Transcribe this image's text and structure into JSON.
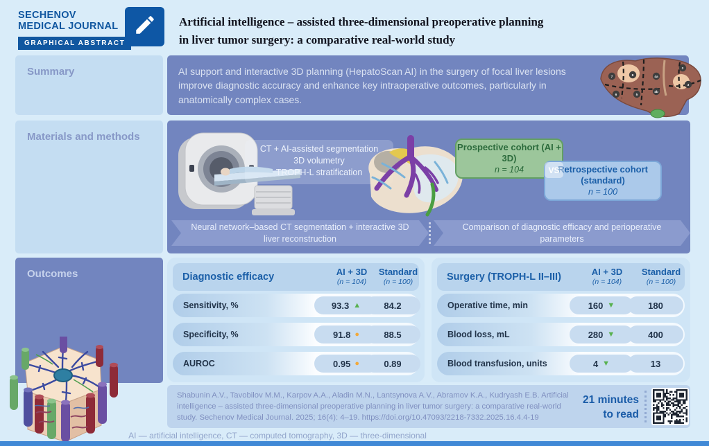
{
  "header": {
    "journal_name_line1": "SECHENOV",
    "journal_name_line2": "MEDICAL JOURNAL",
    "badge_label": "GRAPHICAL ABSTRACT",
    "title_line1": "Artificial intelligence – assisted three-dimensional preoperative planning",
    "title_line2": "in liver tumor surgery: a comparative real-world study"
  },
  "sections": {
    "summary": {
      "label": "Summary",
      "text": "AI support and interactive 3D planning (HepatoScan AI) in the surgery of focal liver lesions improve diagnostic accuracy and enhance key intraoperative outcomes, particularly in anatomically complex cases."
    },
    "methods": {
      "label": "Materials and methods",
      "workflow_note_lines": [
        "CT + AI-assisted segmentation",
        "3D volumetry",
        "TROPH-L stratification"
      ],
      "prospective_cohort": {
        "name": "Prospective cohort (AI + 3D)",
        "n": "n = 104"
      },
      "vs_label": "VS",
      "retrospective_cohort": {
        "name": "Retrospective cohort (standard)",
        "n": "n = 100"
      },
      "arrow_left": "Neural network–based CT segmentation + interactive 3D liver reconstruction",
      "arrow_right": "Comparison of diagnostic efficacy and perioperative parameters"
    },
    "outcomes": {
      "label": "Outcomes",
      "columns": {
        "ai": "AI + 3D",
        "ai_n": "(n = 104)",
        "standard": "Standard",
        "standard_n": "(n = 100)"
      },
      "tables": [
        {
          "title": "Diagnostic efficacy",
          "rows": [
            {
              "label": "Sensitivity, %",
              "ai_value": "93.3",
              "trend_glyph": "▲",
              "trend_color": "#58b14f",
              "standard_value": "84.2"
            },
            {
              "label": "Specificity, %",
              "ai_value": "91.8",
              "trend_glyph": "●",
              "trend_color": "#f2a93b",
              "standard_value": "88.5"
            },
            {
              "label": "AUROC",
              "ai_value": "0.95",
              "trend_glyph": "●",
              "trend_color": "#f2a93b",
              "standard_value": "0.89"
            }
          ]
        },
        {
          "title": "Surgery (TROPH-L II–III)",
          "rows": [
            {
              "label": "Operative time, min",
              "ai_value": "160",
              "trend_glyph": "▼",
              "trend_color": "#58b14f",
              "standard_value": "180"
            },
            {
              "label": "Blood loss, mL",
              "ai_value": "280",
              "trend_glyph": "▼",
              "trend_color": "#58b14f",
              "standard_value": "400"
            },
            {
              "label": "Blood transfusion, units",
              "ai_value": "4",
              "trend_glyph": "▼",
              "trend_color": "#58b14f",
              "standard_value": "13"
            }
          ]
        }
      ]
    }
  },
  "footer": {
    "citation": "Shabunin A.V., Tavobilov M.M., Karpov A.A., Aladin M.N., Lantsynova A.V., Abramov K.A., Kudryash E.B. Artificial intelligence – assisted three-dimensional preoperative planning in liver tumor surgery: a comparative real-world study. Sechenov Medical Journal. 2025; 16(4): 4–19. https://doi.org/10.47093/2218-7332.2025.16.4.4-19",
    "read_time_line1": "21 minutes",
    "read_time_line2": "to read",
    "abbreviations": "AI — artificial intelligence, CT — computed tomography, 3D — three-dimensional"
  },
  "illustrations": {
    "liver_segments": "liver with numbered Couinaud segments, tumors and dashed resection lines",
    "liver_segment_badges": [
      "2",
      "3",
      "4a",
      "4b",
      "5",
      "6",
      "7",
      "8"
    ],
    "ct_scanner": "CT scanner with patient on table",
    "liver_3d_model": "3D liver reconstruction with vascular tree",
    "liver_lobule": "3D liver lobule histology",
    "qr_code": "QR code linking to the article"
  },
  "colors": {
    "brand_blue": "#1157a0",
    "panel_slate": "#7285bf",
    "label_panel_light": "#c4ddf2",
    "table_card": "#cfe5f6",
    "green_positive": "#58b14f",
    "orange_neutral": "#f2a93b",
    "cohort_green_fill": "#9cc69b",
    "cohort_blue_fill": "#abc9ea",
    "bottom_bar": "#4089d6"
  }
}
